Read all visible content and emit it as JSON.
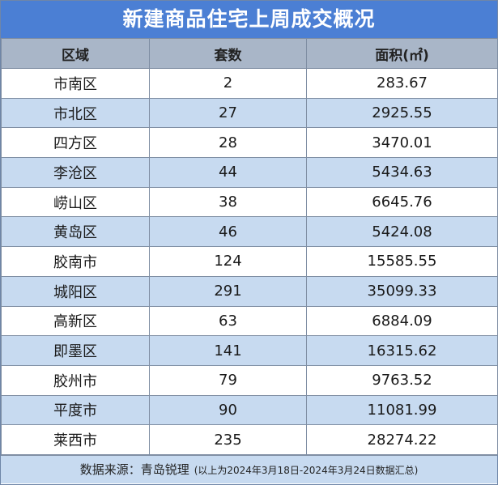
{
  "title": "新建商品住宅上周成交概况",
  "headers": [
    "区域",
    "套数",
    "面积(㎡)"
  ],
  "rows": [
    {
      "region": "市南区",
      "units": "2",
      "area": "283.67"
    },
    {
      "region": "市北区",
      "units": "27",
      "area": "2925.55"
    },
    {
      "region": "四方区",
      "units": "28",
      "area": "3470.01"
    },
    {
      "region": "李沧区",
      "units": "44",
      "area": "5434.63"
    },
    {
      "region": "崂山区",
      "units": "38",
      "area": "6645.76"
    },
    {
      "region": "黄岛区",
      "units": "46",
      "area": "5424.08"
    },
    {
      "region": "胶南市",
      "units": "124",
      "area": "15585.55"
    },
    {
      "region": "城阳区",
      "units": "291",
      "area": "35099.33"
    },
    {
      "region": "高新区",
      "units": "63",
      "area": "6884.09"
    },
    {
      "region": "即墨区",
      "units": "141",
      "area": "16315.62"
    },
    {
      "region": "胶州市",
      "units": "79",
      "area": "9763.52"
    },
    {
      "region": "平度市",
      "units": "90",
      "area": "11081.99"
    },
    {
      "region": "莱西市",
      "units": "235",
      "area": "28274.22"
    }
  ],
  "footer": {
    "source": "数据来源：青岛锐理",
    "note": "(以上为2024年3月18日-2024年3月24日数据汇总)"
  }
}
